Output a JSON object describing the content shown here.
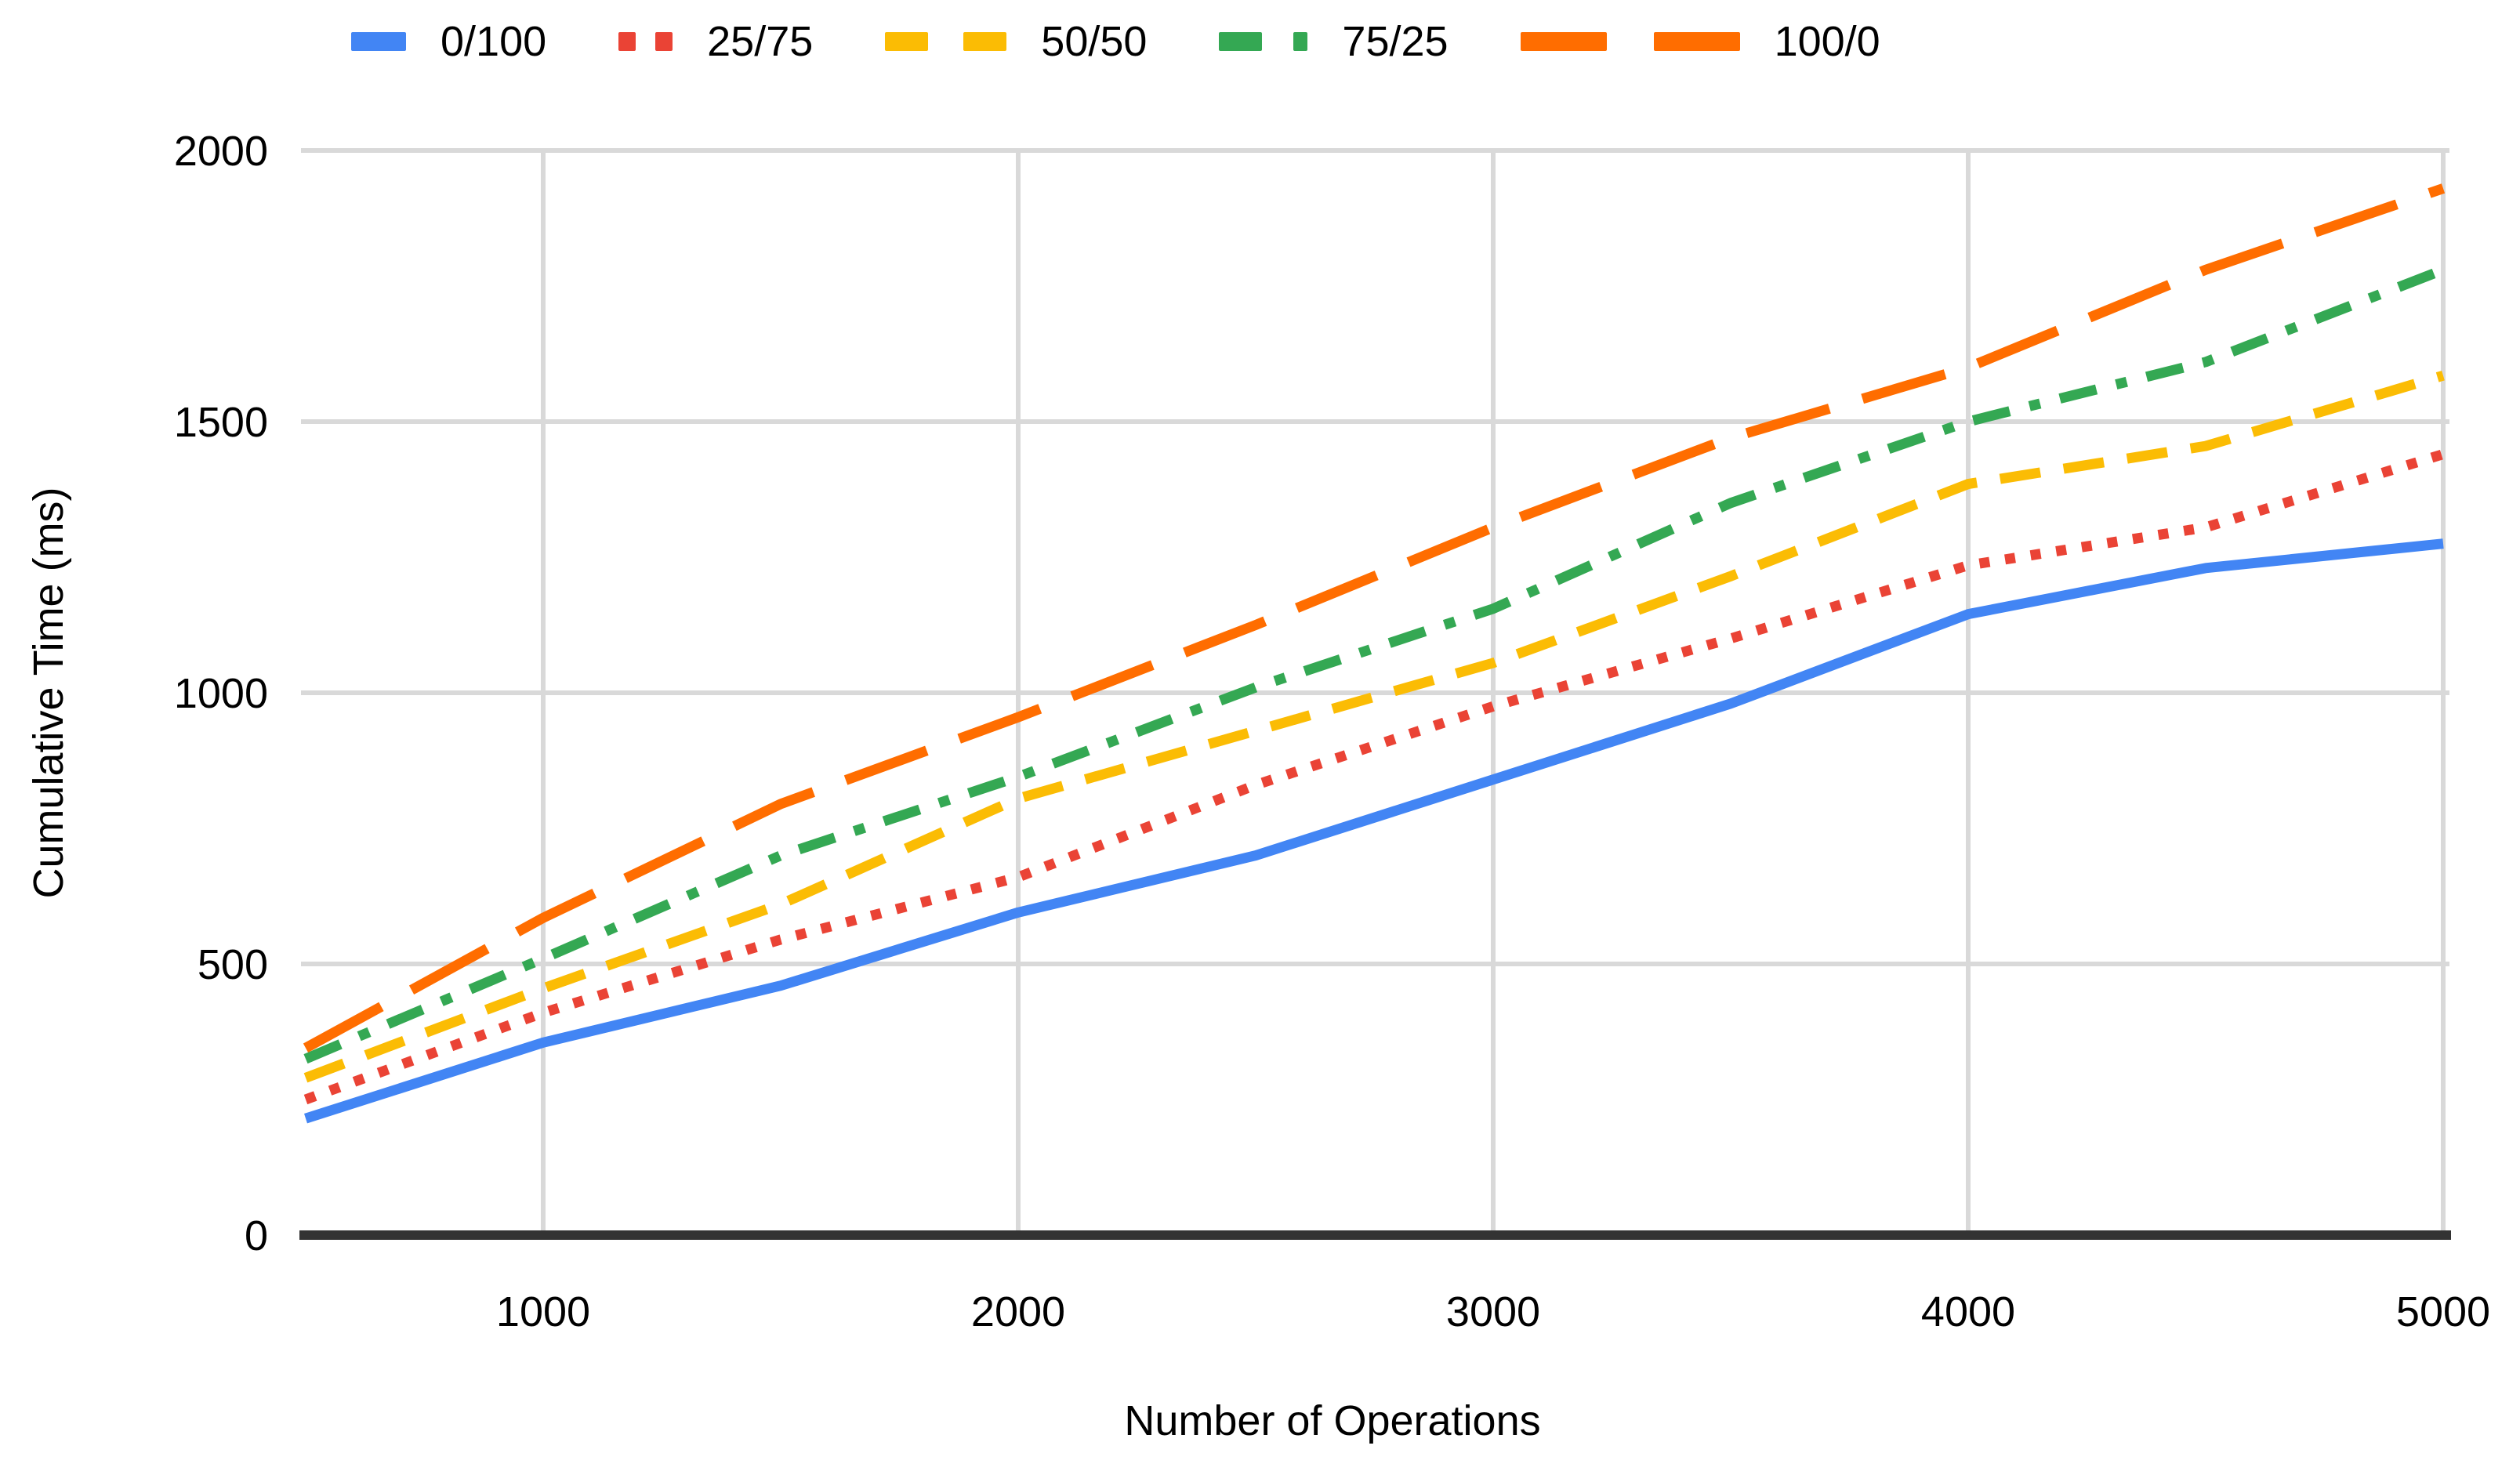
{
  "chart_data": {
    "type": "line",
    "title": "",
    "xlabel": "Number of Operations",
    "ylabel": "Cumulative Time (ms)",
    "x": [
      500,
      1000,
      1500,
      2000,
      2500,
      3000,
      3500,
      4000,
      4500,
      5000
    ],
    "xlim": [
      500,
      5000
    ],
    "ylim": [
      0,
      2000
    ],
    "x_ticks": [
      "1000",
      "2000",
      "3000",
      "4000",
      "5000"
    ],
    "x_tick_values": [
      1000,
      2000,
      3000,
      4000,
      5000
    ],
    "y_ticks": [
      "0",
      "500",
      "1000",
      "1500",
      "2000"
    ],
    "y_tick_values": [
      0,
      500,
      1000,
      1500,
      2000
    ],
    "grid": true,
    "legend_position": "top",
    "gridline_color": "#d9d9d9",
    "axis_line_color": "#333333",
    "series": [
      {
        "name": "0/100",
        "color": "#4285F4",
        "style": "solid",
        "values": [
          215,
          355,
          460,
          595,
          700,
          840,
          980,
          1145,
          1230,
          1275
        ]
      },
      {
        "name": "25/75",
        "color": "#EA4335",
        "style": "dotted",
        "values": [
          250,
          410,
          545,
          660,
          830,
          975,
          1100,
          1235,
          1305,
          1440
        ]
      },
      {
        "name": "50/50",
        "color": "#FBBC04",
        "style": "dashed",
        "values": [
          290,
          455,
          610,
          805,
          930,
          1055,
          1215,
          1385,
          1455,
          1585
        ]
      },
      {
        "name": "75/25",
        "color": "#34A853",
        "style": "dash-dot",
        "values": [
          325,
          510,
          700,
          845,
          1010,
          1155,
          1350,
          1500,
          1610,
          1780
        ]
      },
      {
        "name": "100/0",
        "color": "#FF6D00",
        "style": "long-dash",
        "values": [
          345,
          585,
          795,
          955,
          1125,
          1305,
          1470,
          1600,
          1780,
          1930
        ]
      }
    ]
  }
}
